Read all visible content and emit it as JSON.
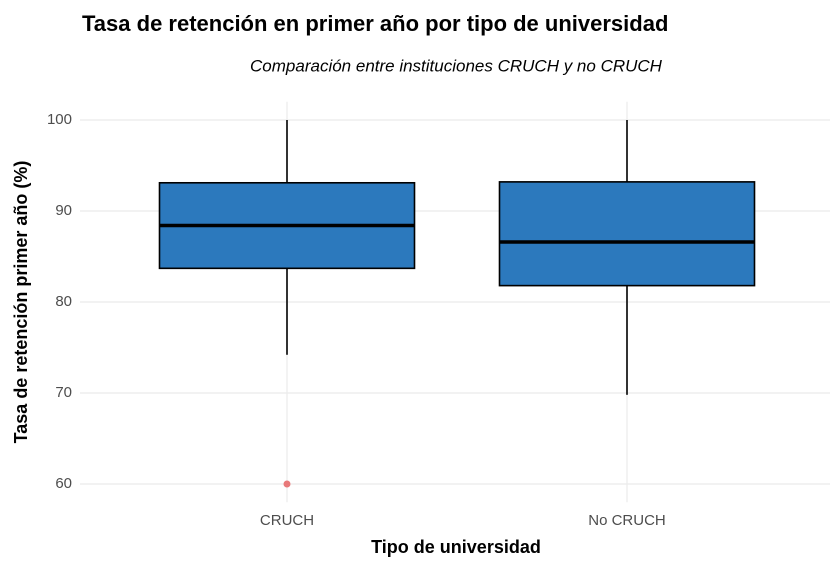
{
  "chart_data": {
    "type": "box",
    "title": "Tasa de retención en primer año por tipo de universidad",
    "subtitle": "Comparación entre instituciones CRUCH y no CRUCH",
    "x_label": "Tipo de universidad",
    "y_label": "Tasa de retención primer año (%)",
    "categories": [
      "CRUCH",
      "No CRUCH"
    ],
    "boxes": [
      {
        "min": 74.2,
        "q1": 83.7,
        "median": 88.4,
        "q3": 93.1,
        "max": 100,
        "outliers": [
          60
        ]
      },
      {
        "min": 69.8,
        "q1": 81.8,
        "median": 86.6,
        "q3": 93.2,
        "max": 100,
        "outliers": []
      }
    ],
    "color": "#2c79bd",
    "outlier_color": "#e8797a",
    "ylim": [
      58,
      102
    ],
    "yticks": [
      60,
      70,
      80,
      90,
      100
    ],
    "grid": true
  }
}
